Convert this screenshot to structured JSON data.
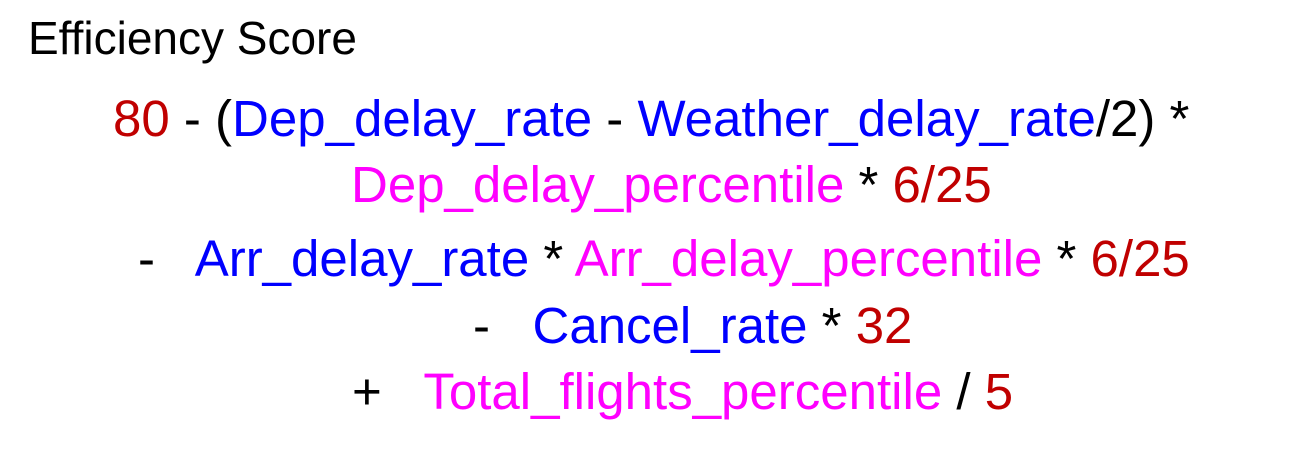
{
  "title": "Efficiency Score",
  "colors": {
    "constant": "#c00000",
    "rate_variable": "#0000ff",
    "percentile_variable": "#ff00ff",
    "operator": "#000000"
  },
  "formula": {
    "line1": {
      "const_80": "80",
      "op_open": " - (",
      "var_dep_delay_rate": "Dep_delay_rate",
      "op_minus": " - ",
      "var_weather_delay_rate": "Weather_delay_rate",
      "op_close": "/2) *"
    },
    "line2": {
      "var_dep_delay_percentile": "Dep_delay_percentile",
      "op_mult": " * ",
      "const_6_25": "6/25"
    },
    "line3": {
      "op_minus": "-   ",
      "var_arr_delay_rate": "Arr_delay_rate",
      "op_mult1": " * ",
      "var_arr_delay_percentile": "Arr_delay_percentile",
      "op_mult2": " * ",
      "const_6_25": "6/25"
    },
    "line4": {
      "op_minus": "-   ",
      "var_cancel_rate": "Cancel_rate",
      "op_mult": " * ",
      "const_32": "32"
    },
    "line5": {
      "op_plus": "+   ",
      "var_total_flights_percentile": "Total_flights_percentile",
      "op_div": " / ",
      "const_5": "5"
    }
  }
}
